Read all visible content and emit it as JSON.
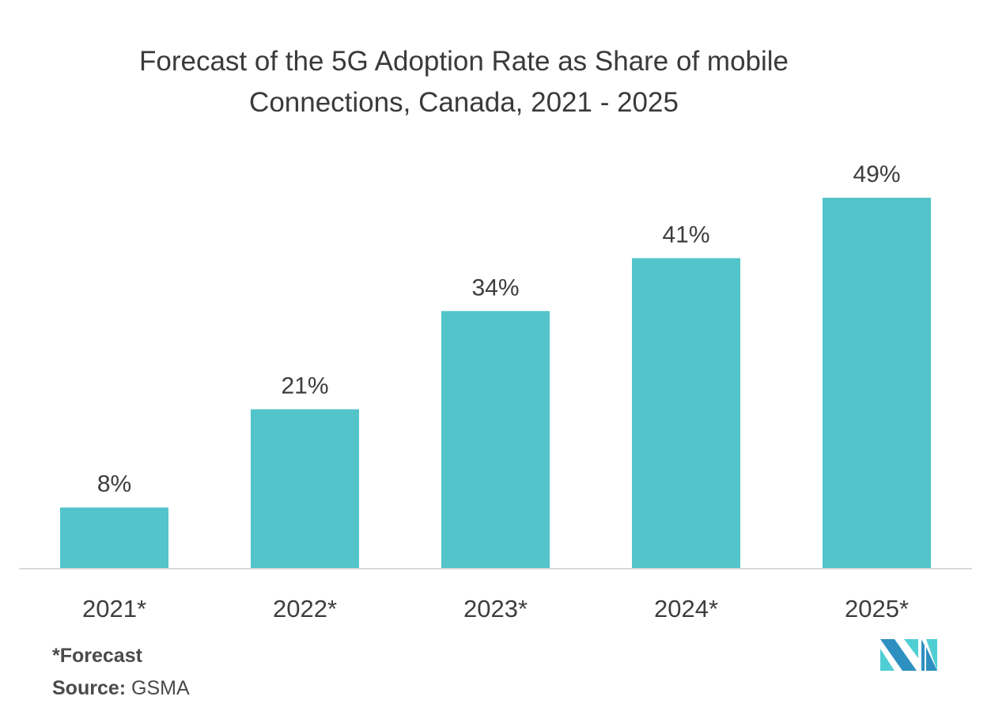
{
  "chart_data": {
    "type": "bar",
    "title": "Forecast of the 5G Adoption Rate as Share of mobile Connections, Canada, 2021 - 2025",
    "title_lines": [
      "Forecast of the 5G Adoption Rate as Share of mobile",
      "Connections, Canada, 2021 - 2025"
    ],
    "categories": [
      "2021*",
      "2022*",
      "2023*",
      "2024*",
      "2025*"
    ],
    "values": [
      8,
      21,
      34,
      41,
      49
    ],
    "data_labels": [
      "8%",
      "21%",
      "34%",
      "41%",
      "49%"
    ],
    "xlabel": "",
    "ylabel": "",
    "ylim": [
      0,
      49
    ],
    "grid": false,
    "legend": "none",
    "bar_color": "#52c4ca",
    "baseline_color": "#d9d9d9"
  },
  "footer": {
    "note": "*Forecast",
    "source_label": "Source:",
    "source_value": "GSMA"
  },
  "logo": {
    "name": "mordor-intelligence-logo",
    "colors": [
      "#2e8fc1",
      "#4fcfd3"
    ]
  }
}
